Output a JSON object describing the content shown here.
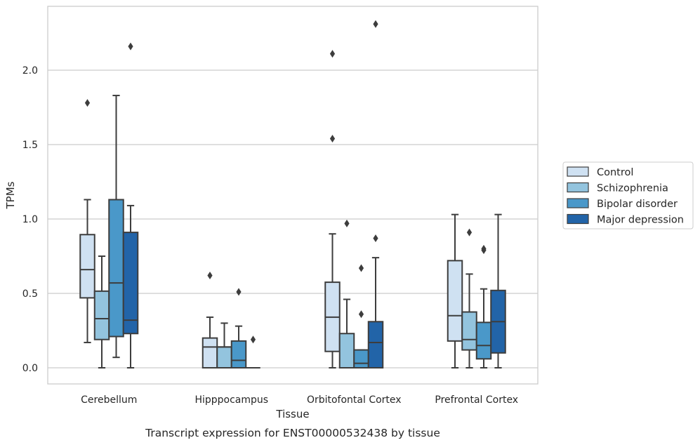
{
  "caption": "Transcript expression for ENST00000532438 by tissue",
  "chart_data": {
    "type": "box",
    "xlabel": "Tissue",
    "ylabel": "TPMs",
    "ylim": [
      -0.11,
      2.43
    ],
    "yticks": [
      "0.0",
      "0.5",
      "1.0",
      "1.5",
      "2.0"
    ],
    "yticks_values": [
      0.0,
      0.5,
      1.0,
      1.5,
      2.0
    ],
    "grid": "horizontal",
    "legend_position": "right",
    "categories": [
      "Cerebellum",
      "Hipppocampus",
      "Orbitofontal Cortex",
      "Prefrontal Cortex"
    ],
    "series": [
      {
        "name": "Control",
        "color": "#cfe1f2",
        "boxes": [
          {
            "whislo": 0.17,
            "q1": 0.47,
            "med": 0.66,
            "q3": 0.895,
            "whishi": 1.13,
            "fliers": [
              1.78
            ]
          },
          {
            "whislo": 0.0,
            "q1": 0.0,
            "med": 0.14,
            "q3": 0.2,
            "whishi": 0.34,
            "fliers": [
              0.62
            ]
          },
          {
            "whislo": 0.0,
            "q1": 0.11,
            "med": 0.34,
            "q3": 0.575,
            "whishi": 0.9,
            "fliers": [
              1.54,
              2.11
            ]
          },
          {
            "whislo": 0.0,
            "q1": 0.18,
            "med": 0.35,
            "q3": 0.72,
            "whishi": 1.03,
            "fliers": []
          }
        ]
      },
      {
        "name": "Schizophrenia",
        "color": "#93c4de",
        "boxes": [
          {
            "whislo": 0.0,
            "q1": 0.19,
            "med": 0.33,
            "q3": 0.515,
            "whishi": 0.75,
            "fliers": []
          },
          {
            "whislo": 0.0,
            "q1": 0.0,
            "med": 0.14,
            "q3": 0.14,
            "whishi": 0.3,
            "fliers": []
          },
          {
            "whislo": 0.0,
            "q1": 0.0,
            "med": 0.0,
            "q3": 0.23,
            "whishi": 0.46,
            "fliers": [
              0.97
            ]
          },
          {
            "whislo": 0.0,
            "q1": 0.12,
            "med": 0.19,
            "q3": 0.375,
            "whishi": 0.63,
            "fliers": [
              0.91
            ]
          }
        ]
      },
      {
        "name": "Bipolar disorder",
        "color": "#4a98c9",
        "boxes": [
          {
            "whislo": 0.07,
            "q1": 0.21,
            "med": 0.57,
            "q3": 1.13,
            "whishi": 1.83,
            "fliers": []
          },
          {
            "whislo": 0.0,
            "q1": 0.0,
            "med": 0.05,
            "q3": 0.18,
            "whishi": 0.28,
            "fliers": [
              0.51
            ]
          },
          {
            "whislo": 0.0,
            "q1": 0.0,
            "med": 0.03,
            "q3": 0.12,
            "whishi": 0.12,
            "fliers": [
              0.36,
              0.67
            ]
          },
          {
            "whislo": 0.0,
            "q1": 0.06,
            "med": 0.15,
            "q3": 0.305,
            "whishi": 0.53,
            "fliers": [
              0.79,
              0.8
            ]
          }
        ]
      },
      {
        "name": "Major depression",
        "color": "#2264a8",
        "boxes": [
          {
            "whislo": 0.0,
            "q1": 0.23,
            "med": 0.32,
            "q3": 0.91,
            "whishi": 1.09,
            "fliers": [
              2.16
            ]
          },
          {
            "whislo": 0.0,
            "q1": 0.0,
            "med": 0.0,
            "q3": 0.0,
            "whishi": 0.0,
            "fliers": [
              0.19
            ]
          },
          {
            "whislo": 0.0,
            "q1": 0.0,
            "med": 0.17,
            "q3": 0.31,
            "whishi": 0.74,
            "fliers": [
              0.87,
              2.31
            ]
          },
          {
            "whislo": 0.0,
            "q1": 0.1,
            "med": 0.31,
            "q3": 0.52,
            "whishi": 1.03,
            "fliers": []
          }
        ]
      }
    ]
  }
}
